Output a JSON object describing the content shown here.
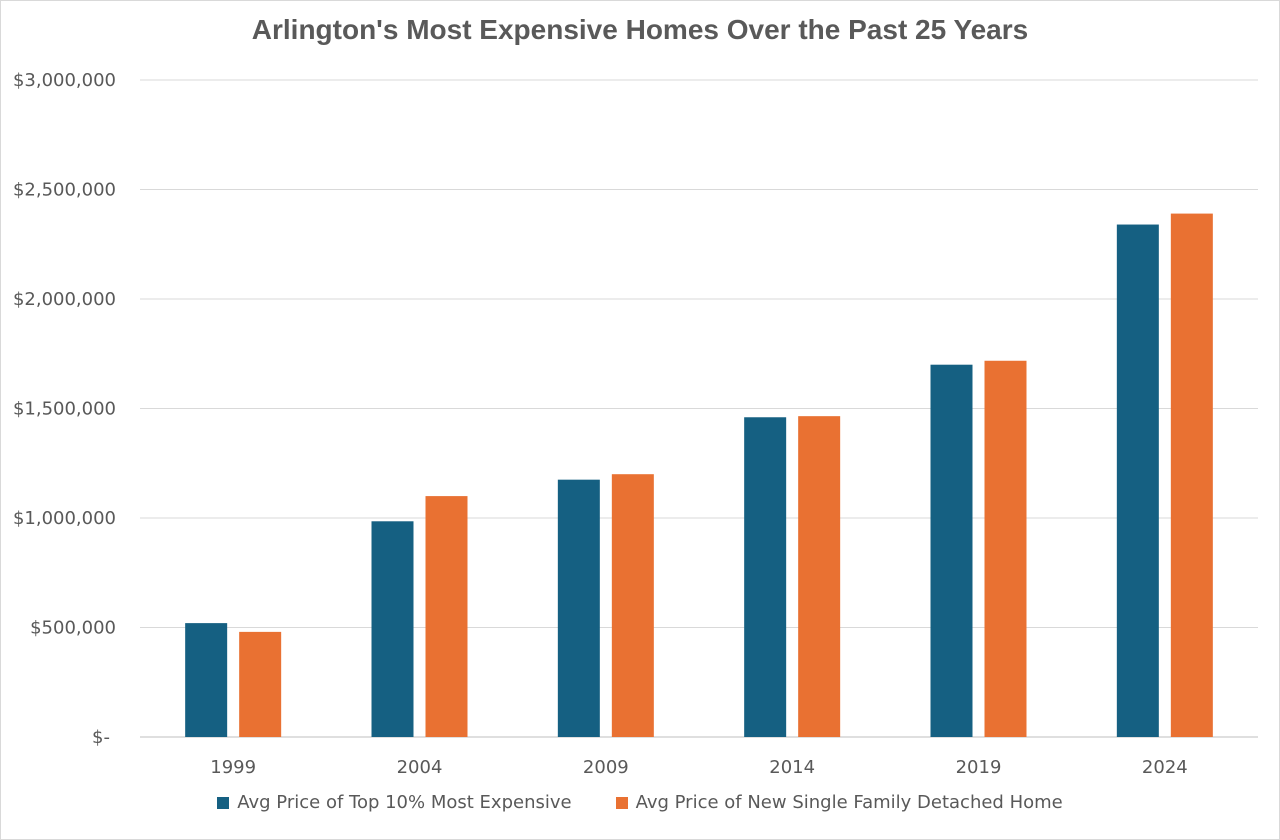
{
  "chart_data": {
    "type": "bar",
    "title": "Arlington's Most Expensive Homes Over the Past 25 Years",
    "xlabel": "",
    "ylabel": "",
    "categories": [
      "1999",
      "2004",
      "2009",
      "2014",
      "2019",
      "2024"
    ],
    "series": [
      {
        "name": "Avg Price of Top 10% Most Expensive",
        "color": "#156082",
        "values": [
          520000,
          985000,
          1175000,
          1460000,
          1700000,
          2340000
        ]
      },
      {
        "name": "Avg Price of New Single Family Detached Home",
        "color": "#E97132",
        "values": [
          480000,
          1100000,
          1200000,
          1465000,
          1718000,
          2390000
        ]
      }
    ],
    "ylim": [
      0,
      3000000
    ],
    "yticks": [
      0,
      500000,
      1000000,
      1500000,
      2000000,
      2500000,
      3000000
    ],
    "ytick_labels": [
      "$-",
      "$500,000",
      "$1,000,000",
      "$1,500,000",
      "$2,000,000",
      "$2,500,000",
      "$3,000,000"
    ],
    "grid": true,
    "legend_position": "bottom"
  }
}
